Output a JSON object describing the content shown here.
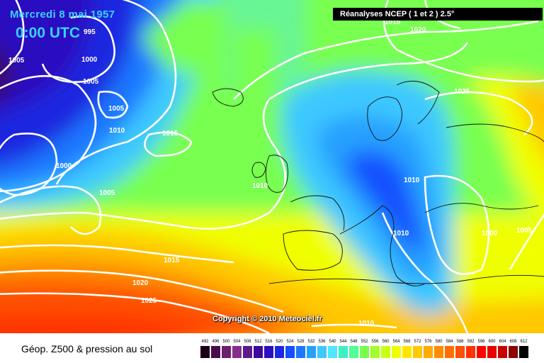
{
  "header": {
    "date": "Mercredi 8 mai 1957",
    "time": "0:00 UTC",
    "source": "Réanalyses NCEP ( 1 et 2 ) 2.5°"
  },
  "copyright": "Copyright © 2010 Meteociel.fr",
  "footer": {
    "label": "Géop. Z500 & pression au sol"
  },
  "isobar_labels": [
    "1005",
    "995",
    "1000",
    "1005",
    "1005",
    "1010",
    "1000",
    "1015",
    "1005",
    "1010",
    "1015",
    "1020",
    "1025",
    "1015",
    "1020",
    "1025",
    "1010",
    "1010",
    "1000",
    "1005",
    "1010"
  ],
  "legend": {
    "values": [
      "492",
      "496",
      "500",
      "504",
      "508",
      "512",
      "516",
      "520",
      "524",
      "528",
      "532",
      "536",
      "540",
      "544",
      "548",
      "552",
      "556",
      "560",
      "564",
      "568",
      "572",
      "576",
      "580",
      "584",
      "588",
      "592",
      "596",
      "600",
      "604",
      "608",
      "612"
    ],
    "colors": [
      "#1a001a",
      "#4b0a4b",
      "#6e1e6e",
      "#8a2d8a",
      "#5a1a8a",
      "#3a0aa0",
      "#2a10c0",
      "#1a28e0",
      "#1450ff",
      "#1e78ff",
      "#28a0ff",
      "#3cc8ff",
      "#50e6ff",
      "#3cf0c8",
      "#50ff96",
      "#78ff50",
      "#a0ff28",
      "#c8ff14",
      "#f0ff00",
      "#ffe600",
      "#ffc800",
      "#ffaa00",
      "#ff8c00",
      "#ff6e00",
      "#ff5000",
      "#ff3200",
      "#ff0000",
      "#e60000",
      "#c80000",
      "#8c0000",
      "#000000"
    ]
  }
}
